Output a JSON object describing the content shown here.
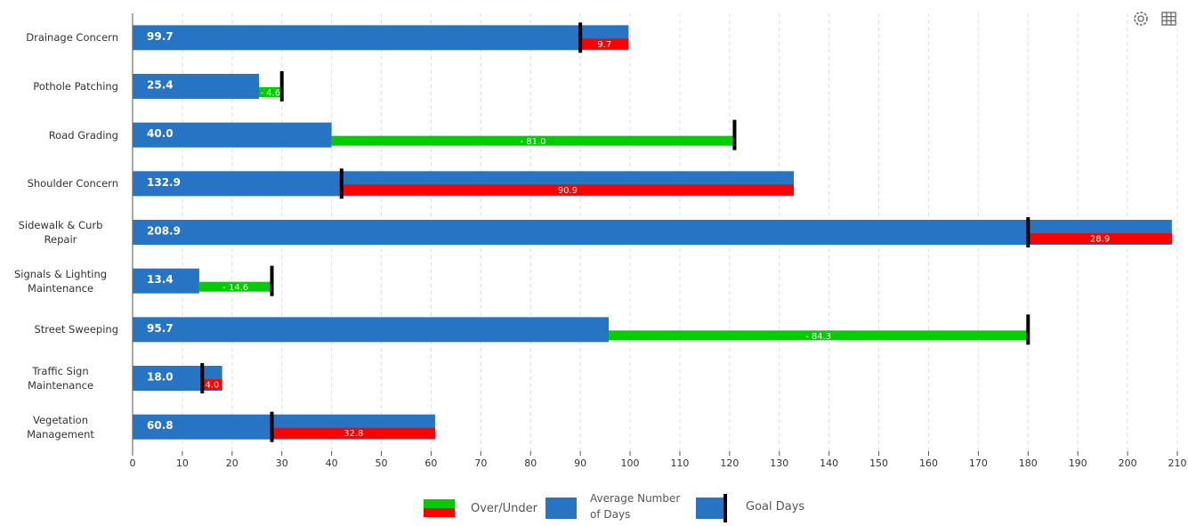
{
  "chart_data": {
    "type": "bullet-bar",
    "categories": [
      "Drainage Concern",
      "Pothole Patching",
      "Road Grading",
      "Shoulder Concern",
      "Sidewalk & Curb Repair",
      "Signals & Lighting Maintenance",
      "Street Sweeping",
      "Traffic Sign Maintenance",
      "Vegetation Management"
    ],
    "series": [
      {
        "name": "Average Number of Days",
        "color": "#2874c4",
        "values": [
          99.7,
          25.4,
          40.0,
          132.9,
          208.9,
          13.4,
          95.7,
          18.0,
          60.8
        ],
        "value_labels": [
          "99.7",
          "25.4",
          "40.0",
          "132.9",
          "208.9",
          "13.4",
          "95.7",
          "18.0",
          "60.8"
        ]
      },
      {
        "name": "Over/Under",
        "color": "#ff0000",
        "negative_color": "#00cc00",
        "values": [
          9.7,
          -4.6,
          -81.0,
          90.9,
          28.9,
          -14.6,
          -84.3,
          4.0,
          32.8
        ],
        "value_labels": [
          "9.7",
          "- 4.6",
          "- 81.0",
          "90.9",
          "28.9",
          "- 14.6",
          "- 84.3",
          "4.0",
          "32.8"
        ]
      },
      {
        "name": "Goal Days",
        "color": "#000000",
        "values": [
          90,
          30,
          121,
          42,
          180,
          28,
          180,
          14,
          28
        ]
      }
    ],
    "xlim": [
      0,
      210
    ],
    "xticks": [
      0,
      10,
      20,
      30,
      40,
      50,
      60,
      70,
      80,
      90,
      100,
      110,
      120,
      130,
      140,
      150,
      160,
      170,
      180,
      190,
      200,
      210
    ],
    "grid": true
  }
}
